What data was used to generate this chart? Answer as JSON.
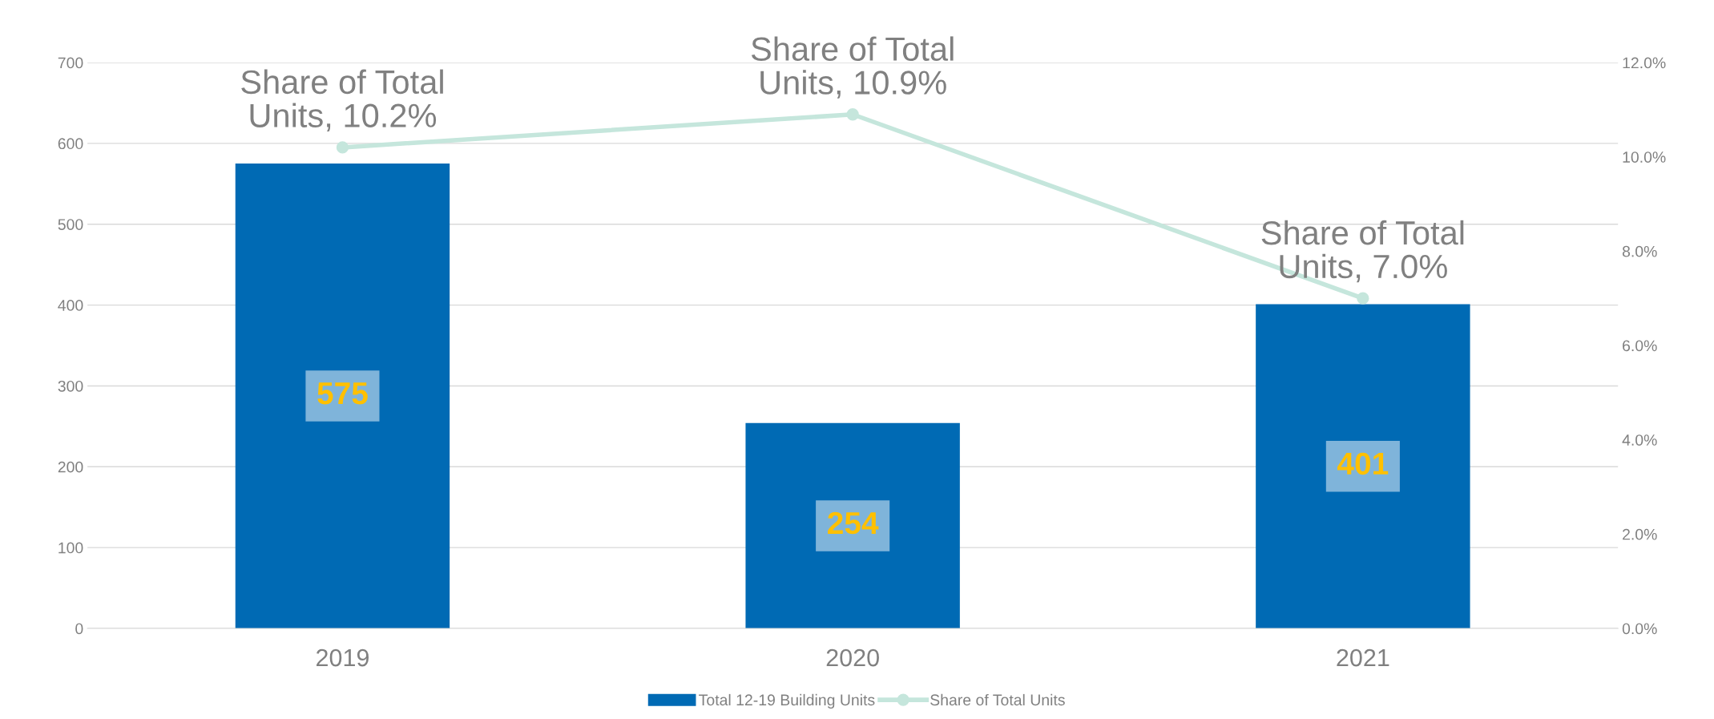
{
  "chart_data": {
    "type": "bar",
    "categories": [
      "2019",
      "2020",
      "2021"
    ],
    "series": [
      {
        "name": "Total 12-19 Building Units",
        "color": "#006ab4",
        "values": [
          575,
          254,
          401
        ],
        "data_labels": true
      },
      {
        "type": "line",
        "name": "Share of Total Units",
        "color": "#c5e6dc",
        "axis": "y2",
        "marker": "circle",
        "values": [
          10.2,
          10.9,
          7.0
        ],
        "value_labels": [
          "Share of Total Units, 10.2%",
          "Share of Total Units, 10.9%",
          "Share of Total Units, 7.0%"
        ]
      }
    ],
    "ylim": [
      0,
      700
    ],
    "yticks": [
      0,
      100,
      200,
      300,
      400,
      500,
      600,
      700
    ],
    "y2lim": [
      0,
      12
    ],
    "y2ticks": [
      {
        "value": 0,
        "label": "0.0%"
      },
      {
        "value": 2,
        "label": "2.0%"
      },
      {
        "value": 4,
        "label": "4.0%"
      },
      {
        "value": 6,
        "label": "6.0%"
      },
      {
        "value": 8,
        "label": "8.0%"
      },
      {
        "value": 10,
        "label": "10.0%"
      },
      {
        "value": 12,
        "label": "12.0%"
      }
    ],
    "grid": "y",
    "legend": "bottom"
  }
}
